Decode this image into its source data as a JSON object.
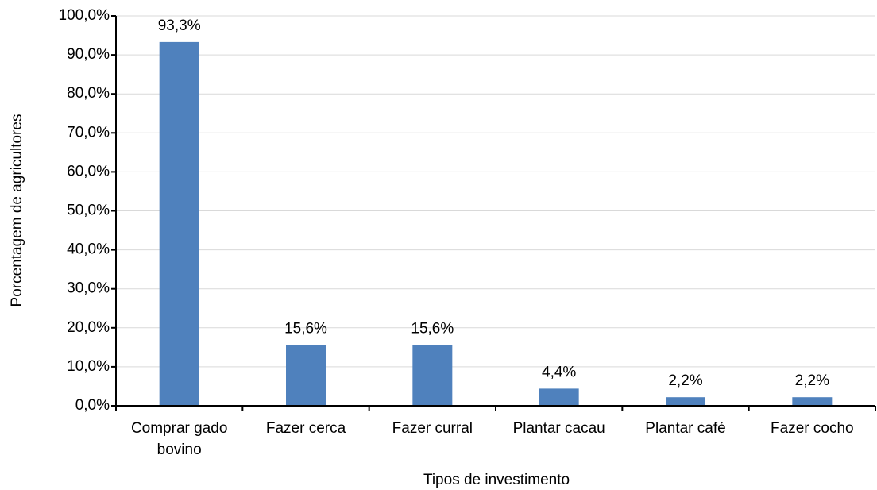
{
  "chart_data": {
    "type": "bar",
    "x_label": "Tipos de investimento",
    "y_label": "Porcentagem de agricultores",
    "categories": [
      "Comprar gado bovino",
      "Fazer cerca",
      "Fazer curral",
      "Plantar cacau",
      "Plantar café",
      "Fazer cocho"
    ],
    "values": [
      93.3,
      15.6,
      15.6,
      4.4,
      2.2,
      2.2
    ],
    "value_labels": [
      "93,3%",
      "15,6%",
      "15,6%",
      "4,4%",
      "2,2%",
      "2,2%"
    ],
    "color": "#4f81bd",
    "ylim": [
      0,
      100
    ],
    "yticks": [
      {
        "value": 0,
        "label": "0,0%"
      },
      {
        "value": 10,
        "label": "10,0%"
      },
      {
        "value": 20,
        "label": "20,0%"
      },
      {
        "value": 30,
        "label": "30,0%"
      },
      {
        "value": 40,
        "label": "40,0%"
      },
      {
        "value": 50,
        "label": "50,0%"
      },
      {
        "value": 60,
        "label": "60,0%"
      },
      {
        "value": 70,
        "label": "70,0%"
      },
      {
        "value": 80,
        "label": "80,0%"
      },
      {
        "value": 90,
        "label": "90,0%"
      },
      {
        "value": 100,
        "label": "100,0%"
      }
    ],
    "grid": true
  }
}
